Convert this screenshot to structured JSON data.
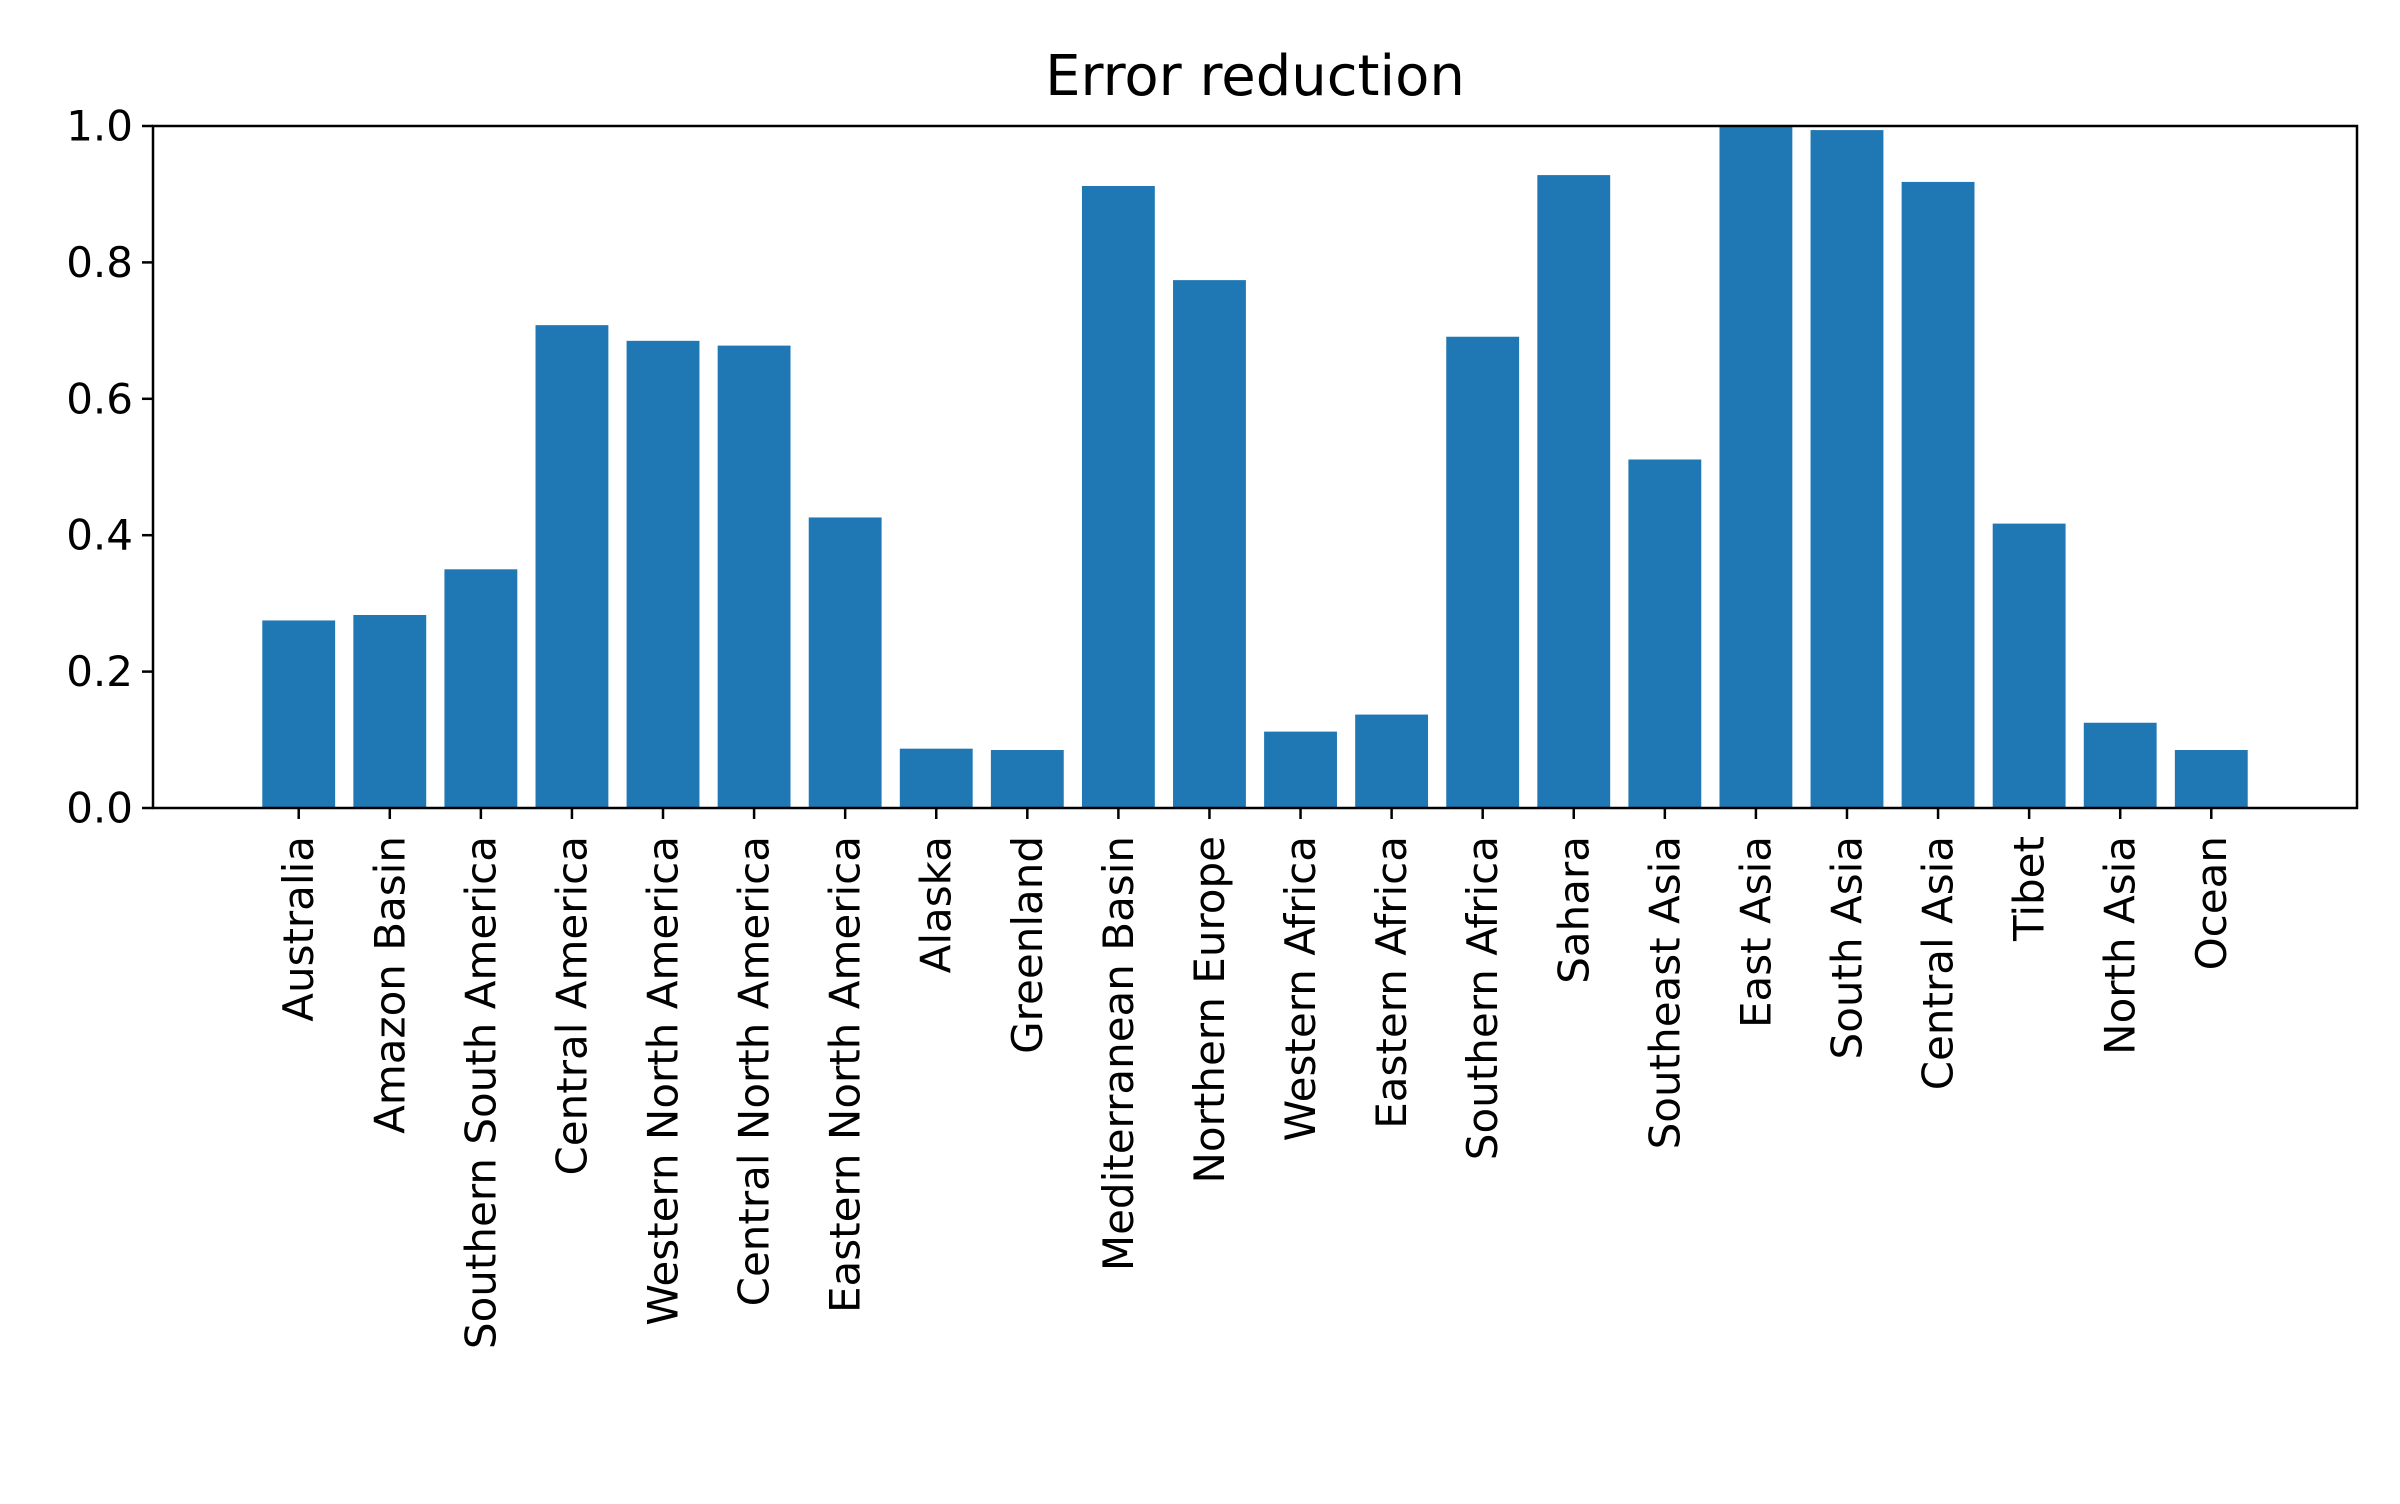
{
  "chart_data": {
    "type": "bar",
    "title": "Error reduction",
    "xlabel": "",
    "ylabel": "",
    "ylim": [
      0,
      1.0
    ],
    "yticks": [
      "0.0",
      "0.2",
      "0.4",
      "0.6",
      "0.8",
      "1.0"
    ],
    "grid": false,
    "bar_color": "#1f77b4",
    "categories": [
      "Australia",
      "Amazon Basin",
      "Southern South America",
      "Central America",
      "Western North America",
      "Central North America",
      "Eastern North America",
      "Alaska",
      "Greenland",
      "Mediterranean Basin",
      "Northern Europe",
      "Western Africa",
      "Eastern Africa",
      "Southern Africa",
      "Sahara",
      "Southeast Asia",
      "East Asia",
      "South Asia",
      "Central Asia",
      "Tibet",
      "North Asia",
      "Ocean"
    ],
    "values": [
      0.275,
      0.283,
      0.35,
      0.708,
      0.685,
      0.678,
      0.426,
      0.087,
      0.085,
      0.912,
      0.774,
      0.112,
      0.137,
      0.691,
      0.928,
      0.511,
      1.0,
      0.994,
      0.918,
      0.417,
      0.125,
      0.085
    ]
  }
}
